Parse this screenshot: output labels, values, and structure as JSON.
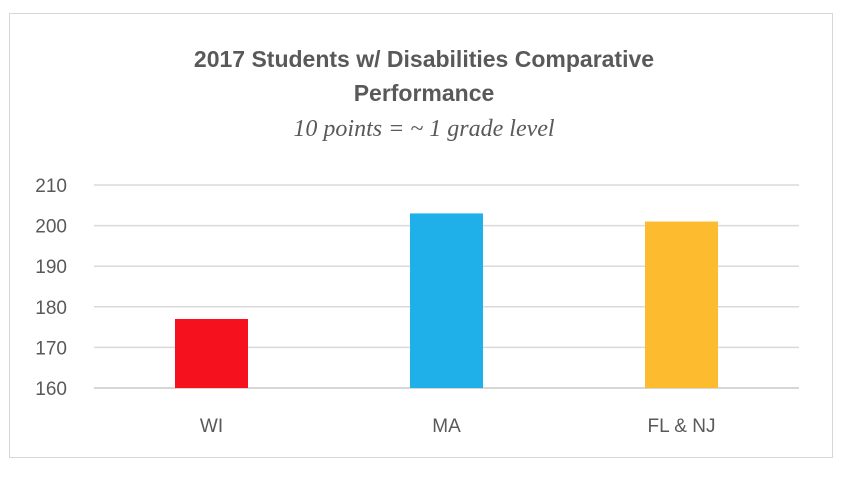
{
  "chart_data": {
    "type": "bar",
    "title_line1": "2017 Students w/ Disabilities Comparative",
    "title_line2": "Performance",
    "subtitle": "10 points  = ~ 1 grade level",
    "categories": [
      "WI",
      "MA",
      "FL & NJ"
    ],
    "values": [
      177,
      203,
      201
    ],
    "colors": [
      "#f5111d",
      "#1fb0ea",
      "#fdbb2f"
    ],
    "ylim": [
      160,
      210
    ],
    "yticks": [
      160,
      170,
      180,
      190,
      200,
      210
    ],
    "grid": true,
    "legend": "none",
    "xlabel": "",
    "ylabel": ""
  }
}
